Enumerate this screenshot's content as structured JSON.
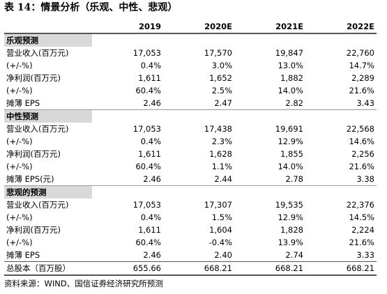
{
  "header": {
    "title": "表 14：情景分析（乐观、中性、悲观）"
  },
  "table": {
    "columns": [
      "2019",
      "2020E",
      "2021E",
      "2022E"
    ],
    "sections": [
      {
        "label": "乐观预测",
        "rows": [
          [
            "营业收入(百万元)",
            "17,053",
            "17,570",
            "19,847",
            "22,760"
          ],
          [
            "(+/-%)",
            "0.4%",
            "3.0%",
            "13.0%",
            "14.7%"
          ],
          [
            "净利润(百万元)",
            "1,611",
            "1,652",
            "1,882",
            "2,289"
          ],
          [
            "(+/-%)",
            "60.4%",
            "2.5%",
            "14.0%",
            "21.6%"
          ],
          [
            "摊薄 EPS",
            "2.46",
            "2.47",
            "2.82",
            "3.43"
          ]
        ]
      },
      {
        "label": "中性预测",
        "rows": [
          [
            "营业收入(百万元)",
            "17,053",
            "17,438",
            "19,691",
            "22,568"
          ],
          [
            "(+/-%)",
            "0.4%",
            "2.3%",
            "12.9%",
            "14.6%"
          ],
          [
            "净利润(百万元)",
            "1,611",
            "1,628",
            "1,855",
            "2,256"
          ],
          [
            "(+/-%)",
            "60.4%",
            "1.1%",
            "14.0%",
            "21.6%"
          ],
          [
            "摊薄 EPS(元)",
            "2.46",
            "2.44",
            "2.78",
            "3.38"
          ]
        ]
      },
      {
        "label": "悲观的预测",
        "rows": [
          [
            "营业收入(百万元)",
            "17,053",
            "17,307",
            "19,535",
            "22,376"
          ],
          [
            "(+/-%)",
            "0.4%",
            "1.5%",
            "12.9%",
            "14.5%"
          ],
          [
            "净利润(百万元)",
            "1,611",
            "1,604",
            "1,828",
            "2,224"
          ],
          [
            "(+/-%)",
            "60.4%",
            "-0.4%",
            "13.9%",
            "21.6%"
          ],
          [
            "摊薄 EPS",
            "2.46",
            "2.40",
            "2.74",
            "3.33"
          ]
        ]
      }
    ],
    "total": [
      "总股本（百万股）",
      "655.66",
      "668.21",
      "668.21",
      "668.21"
    ]
  },
  "footer": {
    "source": "资料来源：WIND、国信证券经济研究所预测"
  }
}
